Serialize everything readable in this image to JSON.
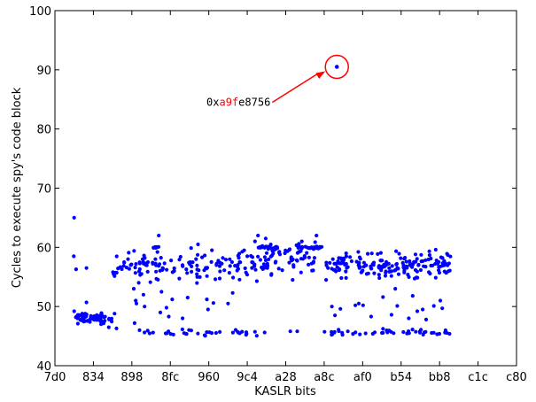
{
  "chart_data": {
    "type": "scatter",
    "title": "",
    "xlabel": "KASLR bits",
    "ylabel": "Cycles to execute spy's code block",
    "xlim": [
      0,
      1200
    ],
    "ylim": [
      40,
      100
    ],
    "x_tick_values": [
      0,
      100,
      200,
      300,
      400,
      500,
      600,
      700,
      800,
      900,
      1000,
      1100,
      1200
    ],
    "x_tick_labels": [
      "7d0",
      "834",
      "898",
      "8fc",
      "960",
      "9c4",
      "a28",
      "a8c",
      "af0",
      "b54",
      "bb8",
      "c1c",
      "c80"
    ],
    "y_ticks": [
      40,
      50,
      60,
      70,
      80,
      90,
      100
    ],
    "grid": false,
    "legend": "none",
    "point_color": "#0000ff",
    "highlight_color": "#ff0000",
    "outlier": {
      "x": 733,
      "y": 90.5
    },
    "annotation": {
      "prefix": "0x",
      "highlight": "a9f",
      "suffix": "e8756",
      "anchor_x": 565,
      "anchor_y": 84.5
    },
    "bands": [
      {
        "x_start": 50,
        "x_end": 150,
        "center": 48.0,
        "spread": 0.4,
        "count": 70
      },
      {
        "x_start": 150,
        "x_end": 560,
        "center": 57.0,
        "spread": 1.2,
        "count": 140
      },
      {
        "x_start": 560,
        "x_end": 680,
        "center": 58.2,
        "spread": 1.4,
        "count": 50
      },
      {
        "x_start": 255,
        "x_end": 270,
        "center": 60.0,
        "spread": 0.05,
        "count": 10
      },
      {
        "x_start": 525,
        "x_end": 580,
        "center": 60.0,
        "spread": 0.1,
        "count": 25
      },
      {
        "x_start": 630,
        "x_end": 700,
        "center": 60.0,
        "spread": 0.08,
        "count": 25
      },
      {
        "x_start": 700,
        "x_end": 1030,
        "center": 57.0,
        "spread": 1.0,
        "count": 170
      },
      {
        "x_start": 200,
        "x_end": 560,
        "center": 45.6,
        "spread": 0.25,
        "count": 35
      },
      {
        "x_start": 700,
        "x_end": 1030,
        "center": 45.6,
        "spread": 0.25,
        "count": 45
      }
    ],
    "points": [
      {
        "x": 50,
        "y": 65.0
      },
      {
        "x": 49,
        "y": 58.5
      },
      {
        "x": 55,
        "y": 56.3
      },
      {
        "x": 82,
        "y": 56.5
      },
      {
        "x": 82,
        "y": 50.7
      },
      {
        "x": 50,
        "y": 49.2
      },
      {
        "x": 120,
        "y": 47.0
      },
      {
        "x": 140,
        "y": 46.5
      },
      {
        "x": 155,
        "y": 48.8
      },
      {
        "x": 160,
        "y": 46.3
      },
      {
        "x": 180,
        "y": 57.5
      },
      {
        "x": 190,
        "y": 58.0
      },
      {
        "x": 197,
        "y": 57.0
      },
      {
        "x": 205,
        "y": 53.0
      },
      {
        "x": 207,
        "y": 47.2
      },
      {
        "x": 210,
        "y": 51.0
      },
      {
        "x": 212,
        "y": 50.5
      },
      {
        "x": 218,
        "y": 54.0
      },
      {
        "x": 220,
        "y": 46.0
      },
      {
        "x": 225,
        "y": 55.5
      },
      {
        "x": 228,
        "y": 58.0
      },
      {
        "x": 230,
        "y": 52.0
      },
      {
        "x": 233,
        "y": 50.0
      },
      {
        "x": 270,
        "y": 62.0
      },
      {
        "x": 274,
        "y": 49.0
      },
      {
        "x": 277,
        "y": 52.5
      },
      {
        "x": 280,
        "y": 56.5
      },
      {
        "x": 290,
        "y": 49.8
      },
      {
        "x": 296,
        "y": 48.3
      },
      {
        "x": 305,
        "y": 51.2
      },
      {
        "x": 310,
        "y": 56.0
      },
      {
        "x": 332,
        "y": 48.0
      },
      {
        "x": 345,
        "y": 51.5
      },
      {
        "x": 352,
        "y": 57.5
      },
      {
        "x": 370,
        "y": 55.0
      },
      {
        "x": 372,
        "y": 60.5
      },
      {
        "x": 395,
        "y": 51.2
      },
      {
        "x": 398,
        "y": 49.5
      },
      {
        "x": 412,
        "y": 50.6
      },
      {
        "x": 420,
        "y": 57.0
      },
      {
        "x": 450,
        "y": 50.5
      },
      {
        "x": 462,
        "y": 52.3
      },
      {
        "x": 492,
        "y": 59.5
      },
      {
        "x": 500,
        "y": 58.5
      },
      {
        "x": 520,
        "y": 61.0
      },
      {
        "x": 528,
        "y": 62.0
      },
      {
        "x": 540,
        "y": 60.2
      },
      {
        "x": 548,
        "y": 61.5
      },
      {
        "x": 552,
        "y": 56.5
      },
      {
        "x": 563,
        "y": 55.5
      },
      {
        "x": 598,
        "y": 59.0
      },
      {
        "x": 620,
        "y": 57.0
      },
      {
        "x": 618,
        "y": 54.5
      },
      {
        "x": 642,
        "y": 61.0
      },
      {
        "x": 680,
        "y": 62.0
      },
      {
        "x": 612,
        "y": 45.8
      },
      {
        "x": 630,
        "y": 45.8
      },
      {
        "x": 705,
        "y": 54.5
      },
      {
        "x": 720,
        "y": 50.0
      },
      {
        "x": 728,
        "y": 48.5
      },
      {
        "x": 742,
        "y": 49.6
      },
      {
        "x": 781,
        "y": 50.2
      },
      {
        "x": 790,
        "y": 50.5
      },
      {
        "x": 801,
        "y": 50.2
      },
      {
        "x": 822,
        "y": 48.3
      },
      {
        "x": 853,
        "y": 51.6
      },
      {
        "x": 875,
        "y": 48.6
      },
      {
        "x": 885,
        "y": 53.0
      },
      {
        "x": 890,
        "y": 50.1
      },
      {
        "x": 920,
        "y": 48.0
      },
      {
        "x": 930,
        "y": 51.8
      },
      {
        "x": 942,
        "y": 49.2
      },
      {
        "x": 956,
        "y": 49.5
      },
      {
        "x": 965,
        "y": 47.8
      },
      {
        "x": 985,
        "y": 50.1
      },
      {
        "x": 1002,
        "y": 51.0
      },
      {
        "x": 1007,
        "y": 49.7
      },
      {
        "x": 990,
        "y": 59.6
      }
    ]
  }
}
